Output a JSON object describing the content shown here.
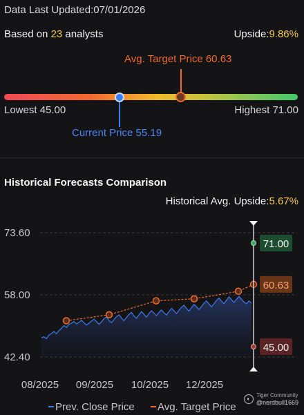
{
  "header": {
    "updated": "Data Last Updated:07/01/2026",
    "based_prefix": "Based on ",
    "analyst_count": "23",
    "based_suffix": " analysts",
    "upside_label": "Upside:",
    "upside_value": "9.86%"
  },
  "target_range": {
    "avg_target_label": "Avg. Target Price 60.63",
    "lowest_label": "Lowest 45.00",
    "highest_label": "Highest 71.00",
    "current_label": "Current Price 55.19",
    "low": 45.0,
    "high": 71.0,
    "avg_target": 60.63,
    "current": 55.19
  },
  "history": {
    "title": "Historical Forecasts Comparison",
    "upside_label": "Historical Avg. Upside:",
    "upside_value": "5.67%"
  },
  "chart_data": {
    "type": "line",
    "ylim": [
      42.4,
      73.6
    ],
    "y_ticks": [
      "73.60",
      "58.00",
      "42.40"
    ],
    "x_ticks": [
      "08/2025",
      "09/2025",
      "10/2025",
      "12/2025"
    ],
    "series": [
      {
        "name": "Prev. Close Price",
        "color": "#3b7cf0",
        "values": [
          47.2,
          47.5,
          47.0,
          47.9,
          48.3,
          48.8,
          48.2,
          49.0,
          49.6,
          50.3,
          49.8,
          50.6,
          50.9,
          51.3,
          50.7,
          51.1,
          51.6,
          51.0,
          50.4,
          50.9,
          51.4,
          51.9,
          51.3,
          50.6,
          51.2,
          52.0,
          52.4,
          51.6,
          51.0,
          51.8,
          52.5,
          53.0,
          52.2,
          51.5,
          52.3,
          53.1,
          53.6,
          52.7,
          52.1,
          53.0,
          53.8,
          53.1,
          52.4,
          53.3,
          54.0,
          53.4,
          52.8,
          53.6,
          54.2,
          53.5,
          52.9,
          53.8,
          54.6,
          54.0,
          53.3,
          54.1,
          54.9,
          55.4,
          54.6,
          53.9,
          54.8,
          55.6,
          55.0,
          54.3,
          55.1,
          55.9,
          56.5,
          55.7,
          55.0,
          55.8,
          56.6,
          57.2,
          56.4,
          55.8,
          56.7,
          57.5,
          56.8,
          56.1,
          56.9,
          57.6,
          56.9,
          56.2,
          55.8,
          56.5,
          55.9
        ]
      },
      {
        "name": "Avg. Target Price",
        "color": "#f06a2c",
        "values": [
          51.5,
          53.0,
          56.5,
          57.0,
          58.9,
          60.63
        ]
      }
    ],
    "latest_high": "71.00",
    "latest_avg": "60.63",
    "latest_low": "45.00",
    "legend": [
      "Prev. Close Price",
      "Avg. Target Price"
    ]
  },
  "watermark": {
    "brand": "Tiger Community",
    "handle": "@nerdbull1669"
  },
  "colors": {
    "background": "#141416",
    "accent_orange": "#f06a2c",
    "accent_blue": "#3b7cf0",
    "highlight_yellow": "#f7c948",
    "high_green": "#2e8a4a",
    "low_red": "#a03a34"
  }
}
